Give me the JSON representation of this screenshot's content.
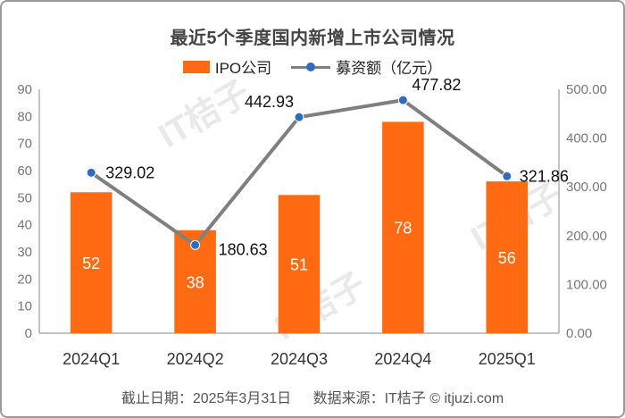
{
  "chart_data": {
    "type": "bar+line",
    "title": "最近5个季度国内新增上市公司情况",
    "categories": [
      "2024Q1",
      "2024Q2",
      "2024Q3",
      "2024Q4",
      "2025Q1"
    ],
    "series": [
      {
        "name": "IPO公司",
        "type": "bar",
        "axis": "left",
        "values": [
          52,
          38,
          51,
          78,
          56
        ]
      },
      {
        "name": "募资额（亿元）",
        "type": "line",
        "axis": "right",
        "values": [
          329.02,
          180.63,
          442.93,
          477.82,
          321.86
        ],
        "labels": [
          "329.02",
          "180.63",
          "442.93",
          "477.82",
          "321.86"
        ]
      }
    ],
    "left_axis": {
      "min": 0,
      "max": 90,
      "ticks": [
        "0",
        "10",
        "20",
        "30",
        "40",
        "50",
        "60",
        "70",
        "80",
        "90"
      ]
    },
    "right_axis": {
      "min": 0,
      "max": 500,
      "ticks": [
        "0.00",
        "100.00",
        "200.00",
        "300.00",
        "400.00",
        "500.00"
      ]
    },
    "legend_position": "top",
    "grid": false
  },
  "colors": {
    "bar": "#ff6a13",
    "line": "#7f7f7f",
    "marker": "#2f6cc0"
  },
  "footer": {
    "date": "截止日期：2025年3月31日",
    "source": "数据来源：IT桔子 © itjuzi.com"
  }
}
